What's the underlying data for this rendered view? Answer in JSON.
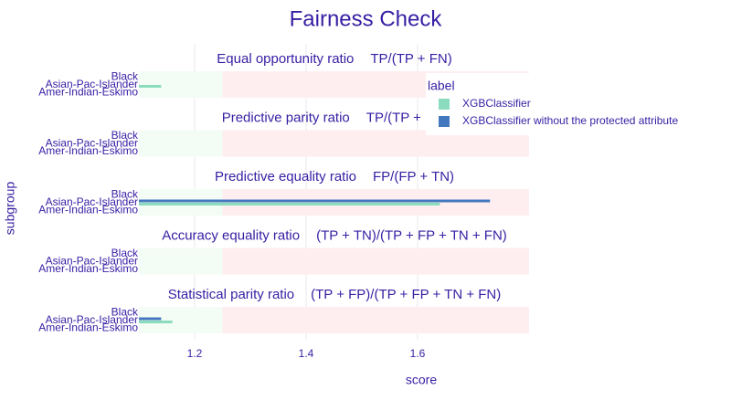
{
  "chart_data": {
    "type": "bar",
    "title": "Fairness Check",
    "xlabel": "score",
    "ylabel": "subgroup",
    "x_ticks": [
      1.2,
      1.4,
      1.6
    ],
    "xlim": [
      1.1,
      1.8
    ],
    "fair_range": [
      0.8,
      1.25
    ],
    "grid": true,
    "legend": {
      "title": "label",
      "placement": "top-right",
      "entries": [
        {
          "name": "XGBClassifier",
          "color": "#8bdcbe"
        },
        {
          "name": "XGBClassifier without the protected attribute",
          "color": "#4378bf"
        }
      ]
    },
    "subgroups": [
      "Black",
      "Asian-Pac-Islander",
      "Amer-Indian-Eskimo"
    ],
    "panels": [
      {
        "metric": "Equal opportunity ratio",
        "formula": "TP/(TP + FN)",
        "series": [
          {
            "name": "XGBClassifier",
            "values": [
              null,
              1.14,
              null
            ]
          },
          {
            "name": "XGBClassifier without the protected attribute",
            "values": [
              null,
              null,
              null
            ]
          }
        ]
      },
      {
        "metric": "Predictive parity ratio",
        "formula": "TP/(TP + FP)",
        "series": [
          {
            "name": "XGBClassifier",
            "values": [
              null,
              null,
              null
            ]
          },
          {
            "name": "XGBClassifier without the protected attribute",
            "values": [
              null,
              null,
              null
            ]
          }
        ]
      },
      {
        "metric": "Predictive equality ratio",
        "formula": "FP/(FP + TN)",
        "series": [
          {
            "name": "XGBClassifier",
            "values": [
              null,
              1.64,
              null
            ]
          },
          {
            "name": "XGBClassifier without the protected attribute",
            "values": [
              null,
              1.73,
              null
            ]
          }
        ]
      },
      {
        "metric": "Accuracy equality ratio",
        "formula": "(TP + TN)/(TP + FP + TN + FN)",
        "series": [
          {
            "name": "XGBClassifier",
            "values": [
              null,
              null,
              null
            ]
          },
          {
            "name": "XGBClassifier without the protected attribute",
            "values": [
              null,
              null,
              null
            ]
          }
        ]
      },
      {
        "metric": "Statistical parity ratio",
        "formula": "(TP + FP)/(TP + FP + TN + FN)",
        "series": [
          {
            "name": "XGBClassifier",
            "values": [
              null,
              1.16,
              null
            ]
          },
          {
            "name": "XGBClassifier without the protected attribute",
            "values": [
              null,
              1.14,
              null
            ]
          }
        ]
      }
    ],
    "colors": {
      "title": "#371ea3",
      "fair_zone": "#f3fcf5",
      "unfair_zone": "#ffeef0",
      "grid": "#e9e9ed"
    }
  }
}
